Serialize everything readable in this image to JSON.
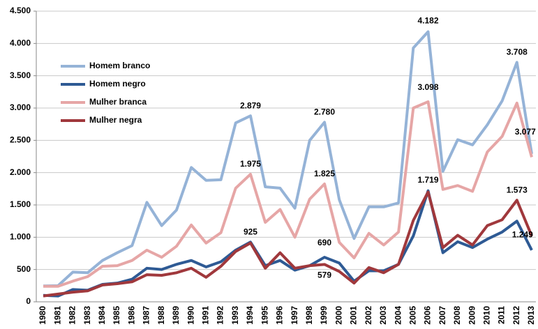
{
  "chart_data": {
    "type": "line",
    "categories": [
      "1980",
      "1981",
      "1982",
      "1983",
      "1984",
      "1985",
      "1986",
      "1987",
      "1988",
      "1989",
      "1990",
      "1991",
      "1992",
      "1993",
      "1994",
      "1995",
      "1996",
      "1997",
      "1998",
      "1999",
      "2000",
      "2001",
      "2002",
      "2003",
      "2004",
      "2005",
      "2006",
      "2007",
      "2008",
      "2009",
      "2010",
      "2011",
      "2012",
      "2013"
    ],
    "series": [
      {
        "name": "Homem branco",
        "color": "#95b3d7",
        "values": [
          245,
          250,
          460,
          450,
          640,
          760,
          870,
          1540,
          1180,
          1420,
          2080,
          1880,
          1890,
          2770,
          2879,
          1780,
          1760,
          1450,
          2500,
          2780,
          1580,
          980,
          1470,
          1470,
          1530,
          3930,
          4182,
          2020,
          2510,
          2430,
          2740,
          3110,
          3708,
          2290
        ],
        "value_labels": [
          null,
          null,
          null,
          null,
          null,
          null,
          null,
          null,
          null,
          null,
          null,
          null,
          null,
          null,
          "2.879",
          null,
          null,
          null,
          null,
          "2.780",
          null,
          null,
          null,
          null,
          null,
          null,
          "4.182",
          null,
          null,
          null,
          null,
          null,
          "3.708",
          null
        ]
      },
      {
        "name": "Homem negro",
        "color": "#2e5a94",
        "values": [
          100,
          90,
          190,
          180,
          270,
          290,
          350,
          520,
          500,
          580,
          640,
          540,
          620,
          800,
          925,
          560,
          640,
          490,
          560,
          690,
          600,
          320,
          480,
          480,
          580,
          1020,
          1719,
          760,
          930,
          840,
          970,
          1080,
          1249,
          800
        ],
        "value_labels": [
          null,
          null,
          null,
          null,
          null,
          null,
          null,
          null,
          null,
          null,
          null,
          null,
          null,
          null,
          "925",
          null,
          null,
          null,
          null,
          "690",
          null,
          null,
          null,
          null,
          null,
          null,
          "1.719",
          null,
          null,
          null,
          null,
          null,
          "1.249",
          null
        ]
      },
      {
        "name": "Mulher branca",
        "color": "#e6a6a6",
        "values": [
          240,
          240,
          320,
          390,
          550,
          560,
          640,
          800,
          690,
          860,
          1190,
          910,
          1070,
          1760,
          1975,
          1230,
          1430,
          1000,
          1590,
          1825,
          920,
          680,
          1060,
          880,
          1080,
          3000,
          3098,
          1740,
          1800,
          1710,
          2320,
          2560,
          3077,
          2240
        ],
        "value_labels": [
          null,
          null,
          null,
          null,
          null,
          null,
          null,
          null,
          null,
          null,
          null,
          null,
          null,
          null,
          "1.975",
          null,
          null,
          null,
          null,
          "1.825",
          null,
          null,
          null,
          null,
          null,
          null,
          "3.098",
          null,
          null,
          null,
          null,
          null,
          "3.077",
          null
        ]
      },
      {
        "name": "Mulher negra",
        "color": "#a0383c",
        "values": [
          90,
          120,
          150,
          170,
          260,
          280,
          310,
          420,
          410,
          450,
          520,
          380,
          550,
          780,
          910,
          520,
          760,
          520,
          560,
          579,
          470,
          290,
          530,
          450,
          580,
          1260,
          1700,
          840,
          1030,
          880,
          1180,
          1270,
          1573,
          1020
        ],
        "value_labels": [
          null,
          null,
          null,
          null,
          null,
          null,
          null,
          null,
          null,
          null,
          null,
          null,
          null,
          null,
          null,
          null,
          null,
          null,
          null,
          "579",
          null,
          null,
          null,
          null,
          null,
          null,
          null,
          null,
          null,
          null,
          null,
          null,
          "1.573",
          null
        ]
      }
    ],
    "ylim": [
      0,
      4500
    ],
    "yticks": [
      0,
      500,
      {
        "value": 1000,
        "label": "1.000"
      },
      {
        "value": 1500,
        "label": "1.500"
      },
      {
        "value": 2000,
        "label": "2.000"
      },
      {
        "value": 2500,
        "label": "2.500"
      },
      {
        "value": 3000,
        "label": "3.000"
      },
      {
        "value": 3500,
        "label": "3.500"
      },
      {
        "value": 4000,
        "label": "4.000"
      },
      {
        "value": 4500,
        "label": "4.500"
      }
    ],
    "grid": true,
    "legend": "upper-left"
  }
}
